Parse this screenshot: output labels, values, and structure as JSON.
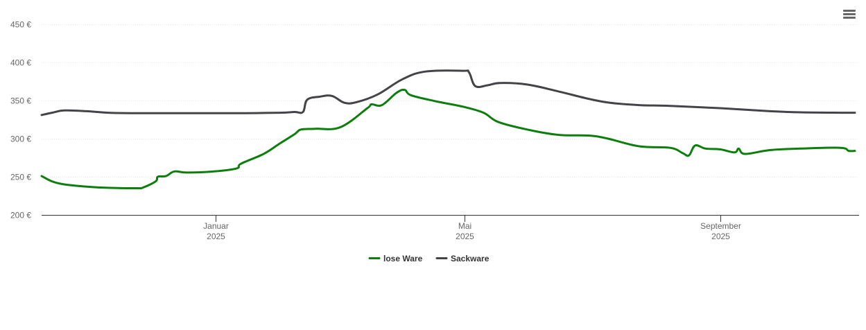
{
  "chart_data": {
    "type": "line",
    "ylabel_unit": "€",
    "ylim": [
      200,
      450
    ],
    "yticks": [
      {
        "value": 200,
        "label": "200 €"
      },
      {
        "value": 250,
        "label": "250 €"
      },
      {
        "value": 300,
        "label": "300 €"
      },
      {
        "value": 350,
        "label": "350 €"
      },
      {
        "value": 400,
        "label": "400 €"
      },
      {
        "value": 450,
        "label": "450 €"
      }
    ],
    "xlim": [
      "2024-10-09",
      "2025-11-07"
    ],
    "xticks": [
      {
        "date": "2025-01-01",
        "label1": "Januar",
        "label2": "2025"
      },
      {
        "date": "2025-05-01",
        "label1": "Mai",
        "label2": "2025"
      },
      {
        "date": "2025-09-01",
        "label1": "September",
        "label2": "2025"
      }
    ],
    "grid": true,
    "legend_position": "bottom-center",
    "series": [
      {
        "name": "lose Ware",
        "color": "#0c7e0c",
        "points": [
          [
            "2024-10-09",
            251
          ],
          [
            "2024-10-14",
            244
          ],
          [
            "2024-10-20",
            240
          ],
          [
            "2024-10-31",
            237
          ],
          [
            "2024-11-10",
            235.5
          ],
          [
            "2024-11-24",
            235
          ],
          [
            "2024-11-27",
            236
          ],
          [
            "2024-12-03",
            244
          ],
          [
            "2024-12-04",
            250
          ],
          [
            "2024-12-08",
            251
          ],
          [
            "2024-12-12",
            257
          ],
          [
            "2024-12-18",
            255.5
          ],
          [
            "2024-12-31",
            257
          ],
          [
            "2025-01-11",
            261
          ],
          [
            "2025-01-13",
            267
          ],
          [
            "2025-01-24",
            280
          ],
          [
            "2025-02-01",
            294
          ],
          [
            "2025-02-08",
            306
          ],
          [
            "2025-02-11",
            312
          ],
          [
            "2025-02-18",
            313
          ],
          [
            "2025-03-02",
            315
          ],
          [
            "2025-03-15",
            340
          ],
          [
            "2025-03-17",
            345
          ],
          [
            "2025-03-22",
            344
          ],
          [
            "2025-03-29",
            360
          ],
          [
            "2025-04-02",
            364
          ],
          [
            "2025-04-05",
            357
          ],
          [
            "2025-04-17",
            349
          ],
          [
            "2025-04-30",
            342
          ],
          [
            "2025-05-10",
            334
          ],
          [
            "2025-05-17",
            322
          ],
          [
            "2025-05-31",
            312
          ],
          [
            "2025-06-15",
            305
          ],
          [
            "2025-06-30",
            304
          ],
          [
            "2025-07-09",
            300
          ],
          [
            "2025-07-24",
            290
          ],
          [
            "2025-08-08",
            288
          ],
          [
            "2025-08-14",
            281
          ],
          [
            "2025-08-17",
            278
          ],
          [
            "2025-08-20",
            291
          ],
          [
            "2025-08-25",
            287
          ],
          [
            "2025-09-01",
            286
          ],
          [
            "2025-09-08",
            282
          ],
          [
            "2025-09-10",
            287
          ],
          [
            "2025-09-13",
            280
          ],
          [
            "2025-09-25",
            285
          ],
          [
            "2025-10-10",
            287
          ],
          [
            "2025-10-29",
            288
          ],
          [
            "2025-11-02",
            284
          ],
          [
            "2025-11-05",
            284
          ]
        ]
      },
      {
        "name": "Sackware",
        "color": "#434348",
        "points": [
          [
            "2024-10-09",
            331
          ],
          [
            "2024-10-14",
            334
          ],
          [
            "2024-10-20",
            337
          ],
          [
            "2024-10-31",
            336
          ],
          [
            "2024-11-10",
            334
          ],
          [
            "2024-11-24",
            333.5
          ],
          [
            "2024-12-31",
            333.5
          ],
          [
            "2025-01-15",
            333.5
          ],
          [
            "2025-02-01",
            334
          ],
          [
            "2025-02-08",
            335
          ],
          [
            "2025-02-12",
            335
          ],
          [
            "2025-02-14",
            351
          ],
          [
            "2025-02-20",
            355
          ],
          [
            "2025-02-26",
            356
          ],
          [
            "2025-03-04",
            347
          ],
          [
            "2025-03-10",
            348
          ],
          [
            "2025-03-20",
            358
          ],
          [
            "2025-04-01",
            378
          ],
          [
            "2025-04-12",
            388
          ],
          [
            "2025-04-30",
            389
          ],
          [
            "2025-05-03",
            387
          ],
          [
            "2025-05-06",
            369
          ],
          [
            "2025-05-12",
            370
          ],
          [
            "2025-05-18",
            373
          ],
          [
            "2025-05-31",
            371
          ],
          [
            "2025-06-15",
            362
          ],
          [
            "2025-06-30",
            352
          ],
          [
            "2025-07-10",
            347
          ],
          [
            "2025-07-24",
            344
          ],
          [
            "2025-08-08",
            343
          ],
          [
            "2025-09-01",
            340
          ],
          [
            "2025-09-25",
            336
          ],
          [
            "2025-10-10",
            334.5
          ],
          [
            "2025-10-29",
            334
          ],
          [
            "2025-11-05",
            334
          ]
        ]
      }
    ]
  },
  "toolbar": {
    "menu_icon": "hamburger-menu-icon"
  }
}
